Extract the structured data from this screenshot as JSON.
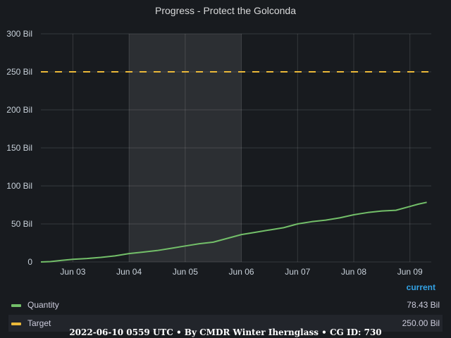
{
  "chart_data": {
    "type": "line",
    "title": "Progress - Protect the Golconda",
    "x_unit": "days",
    "x_ticks": [
      {
        "x": 3,
        "label": "Jun 03"
      },
      {
        "x": 4,
        "label": "Jun 04"
      },
      {
        "x": 5,
        "label": "Jun 05"
      },
      {
        "x": 6,
        "label": "Jun 06"
      },
      {
        "x": 7,
        "label": "Jun 07"
      },
      {
        "x": 8,
        "label": "Jun 08"
      },
      {
        "x": 9,
        "label": "Jun 09"
      }
    ],
    "xlim": [
      2.43,
      9.38
    ],
    "ylim": [
      0,
      300
    ],
    "y_ticks": [
      {
        "v": 0,
        "label": "0"
      },
      {
        "v": 50,
        "label": "50 Bil"
      },
      {
        "v": 100,
        "label": "100 Bil"
      },
      {
        "v": 150,
        "label": "150 Bil"
      },
      {
        "v": 200,
        "label": "200 Bil"
      },
      {
        "v": 250,
        "label": "250 Bil"
      },
      {
        "v": 300,
        "label": "300 Bil"
      }
    ],
    "shaded_region": [
      4.0,
      6.0
    ],
    "grid": true,
    "series": [
      {
        "name": "Quantity",
        "color": "#73bf69",
        "style": "solid",
        "points": [
          [
            2.43,
            0
          ],
          [
            2.6,
            0.5
          ],
          [
            2.8,
            2
          ],
          [
            3.0,
            3.5
          ],
          [
            3.25,
            4.5
          ],
          [
            3.5,
            6
          ],
          [
            3.75,
            8
          ],
          [
            4.0,
            11
          ],
          [
            4.25,
            13
          ],
          [
            4.5,
            15
          ],
          [
            4.75,
            18
          ],
          [
            5.0,
            21
          ],
          [
            5.25,
            24
          ],
          [
            5.5,
            26
          ],
          [
            5.75,
            31
          ],
          [
            6.0,
            36
          ],
          [
            6.25,
            39
          ],
          [
            6.5,
            42
          ],
          [
            6.75,
            45
          ],
          [
            7.0,
            50
          ],
          [
            7.25,
            53
          ],
          [
            7.5,
            55
          ],
          [
            7.75,
            58
          ],
          [
            8.0,
            62
          ],
          [
            8.25,
            65
          ],
          [
            8.5,
            67
          ],
          [
            8.75,
            68
          ],
          [
            9.0,
            73
          ],
          [
            9.15,
            76
          ],
          [
            9.3,
            78.43
          ]
        ]
      },
      {
        "name": "Target",
        "color": "#eab839",
        "style": "dashed",
        "points": [
          [
            2.43,
            250
          ],
          [
            9.38,
            250
          ]
        ]
      }
    ],
    "legend_placement": "bottom",
    "legend_header": "current"
  },
  "legend": [
    {
      "name": "Quantity",
      "value": "78.43 Bil",
      "color": "#73bf69"
    },
    {
      "name": "Target",
      "value": "250.00 Bil",
      "color": "#eab839"
    }
  ],
  "footer": "2022-06-10 0559 UTC • By CMDR Winter Iherngl ass • CG ID: 730"
}
